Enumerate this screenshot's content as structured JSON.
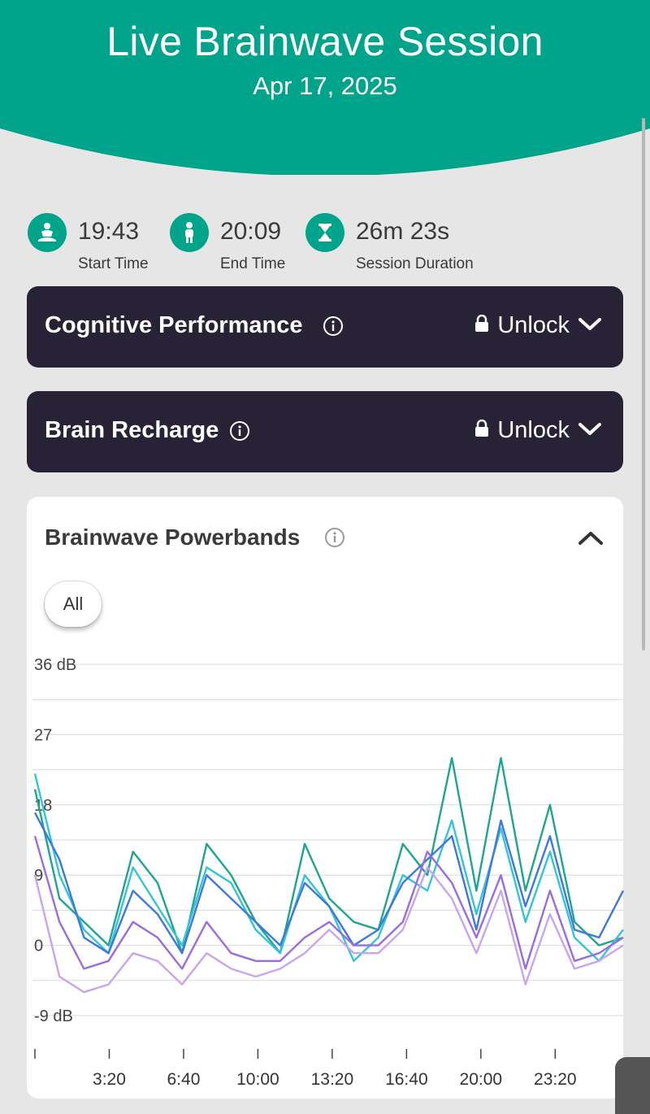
{
  "header": {
    "title": "Live Brainwave Session",
    "date": "Apr 17, 2025"
  },
  "stats": [
    {
      "value": "19:43",
      "label": "Start Time",
      "icon": "meditation-icon"
    },
    {
      "value": "20:09",
      "label": "End Time",
      "icon": "person-icon"
    },
    {
      "value": "26m 23s",
      "label": "Session Duration",
      "icon": "hourglass-icon"
    }
  ],
  "panels": {
    "cognitive": {
      "title": "Cognitive Performance",
      "action": "Unlock"
    },
    "recharge": {
      "title": "Brain Recharge",
      "action": "Unlock"
    }
  },
  "powerbands": {
    "title": "Brainwave Powerbands",
    "filter": "All"
  },
  "colors": {
    "accent": "#00a48a",
    "panel": "#272235"
  },
  "chart_data": {
    "type": "line",
    "y_tick_labels": [
      "36 dB",
      "27",
      "18",
      "9",
      "0",
      "-9 dB"
    ],
    "x_tick_labels": [
      "3:20",
      "6:40",
      "10:00",
      "13:20",
      "16:40",
      "20:00",
      "23:20"
    ],
    "ylim": [
      -9,
      36
    ],
    "xlim": [
      0,
      1583
    ],
    "grid": true,
    "series": [
      {
        "color": "#1fa58e",
        "x": [
          0,
          66,
          132,
          198,
          264,
          330,
          396,
          462,
          528,
          594,
          660,
          726,
          792,
          858,
          924,
          990,
          1056,
          1122,
          1188,
          1254,
          1320,
          1386,
          1452,
          1518,
          1583
        ],
        "y": [
          20,
          6,
          3,
          0,
          12,
          8,
          -1,
          13,
          9,
          3,
          -1,
          13,
          6,
          3,
          2,
          13,
          9,
          24,
          7,
          24,
          7,
          18,
          3,
          0,
          1
        ]
      },
      {
        "color": "#33c4d8",
        "x": [
          0,
          66,
          132,
          198,
          264,
          330,
          396,
          462,
          528,
          594,
          660,
          726,
          792,
          858,
          924,
          990,
          1056,
          1122,
          1188,
          1254,
          1320,
          1386,
          1452,
          1518,
          1583
        ],
        "y": [
          22,
          9,
          2,
          -1,
          10,
          5,
          0,
          10,
          8,
          2,
          -1,
          9,
          5,
          -2,
          1,
          9,
          7,
          16,
          4,
          15,
          3,
          12,
          1,
          -2,
          2
        ]
      },
      {
        "color": "#3d78dd",
        "x": [
          0,
          66,
          132,
          198,
          264,
          330,
          396,
          462,
          528,
          594,
          660,
          726,
          792,
          858,
          924,
          990,
          1056,
          1122,
          1188,
          1254,
          1320,
          1386,
          1452,
          1518,
          1583
        ],
        "y": [
          17,
          11,
          1,
          -1,
          7,
          4,
          -1,
          9,
          6,
          3,
          0,
          8,
          5,
          0,
          2,
          8,
          11,
          14,
          2,
          16,
          5,
          14,
          2,
          1,
          7
        ]
      },
      {
        "color": "#9a6ce0",
        "x": [
          0,
          66,
          132,
          198,
          264,
          330,
          396,
          462,
          528,
          594,
          660,
          726,
          792,
          858,
          924,
          990,
          1056,
          1122,
          1188,
          1254,
          1320,
          1386,
          1452,
          1518,
          1583
        ],
        "y": [
          14,
          3,
          -3,
          -2,
          3,
          1,
          -3,
          3,
          -1,
          -2,
          -2,
          1,
          3,
          0,
          0,
          3,
          12,
          8,
          1,
          9,
          -3,
          7,
          -2,
          -1,
          1
        ]
      },
      {
        "color": "#c9a4ef",
        "x": [
          0,
          66,
          132,
          198,
          264,
          330,
          396,
          462,
          528,
          594,
          660,
          726,
          792,
          858,
          924,
          990,
          1056,
          1122,
          1188,
          1254,
          1320,
          1386,
          1452,
          1518,
          1583
        ],
        "y": [
          9,
          -4,
          -6,
          -5,
          -1,
          -2,
          -5,
          -1,
          -3,
          -4,
          -3,
          -1,
          2,
          -1,
          -1,
          2,
          10,
          6,
          -1,
          7,
          -5,
          4,
          -3,
          -2,
          0
        ]
      }
    ]
  }
}
